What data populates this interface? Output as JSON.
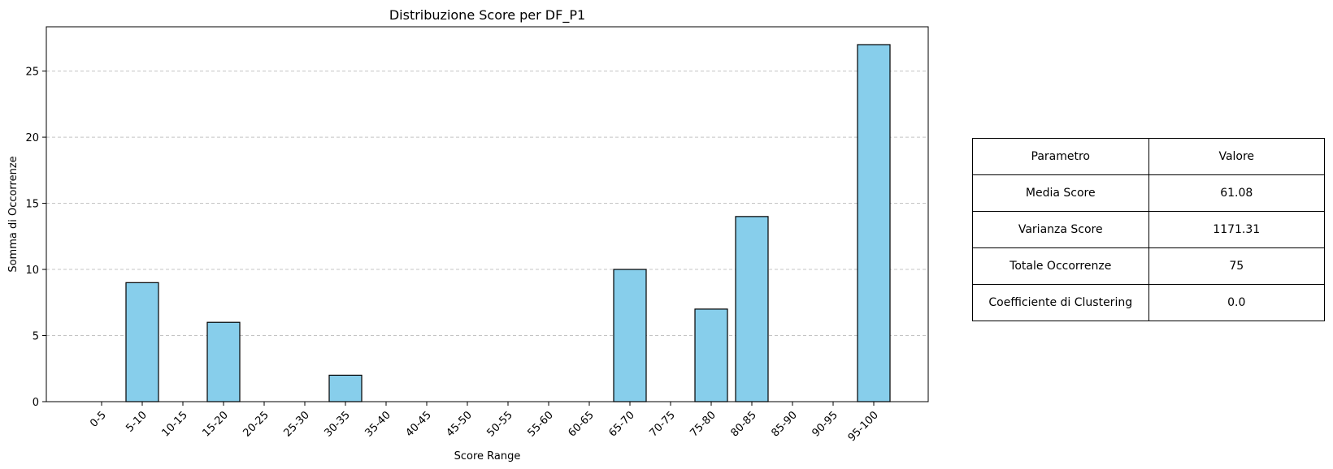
{
  "colors": {
    "bar_fill": "#87ceeb",
    "bar_edge": "#000000",
    "grid": "#c4c4c4",
    "axis": "#000000"
  },
  "chart_data": {
    "type": "bar",
    "title": "Distribuzione Score per DF_P1",
    "xlabel": "Score Range",
    "ylabel": "Somma di Occorrenze",
    "categories": [
      "0-5",
      "5-10",
      "10-15",
      "15-20",
      "20-25",
      "25-30",
      "30-35",
      "35-40",
      "40-45",
      "45-50",
      "50-55",
      "55-60",
      "60-65",
      "65-70",
      "70-75",
      "75-80",
      "80-85",
      "85-90",
      "90-95",
      "95-100"
    ],
    "values": [
      0,
      9,
      0,
      6,
      0,
      0,
      2,
      0,
      0,
      0,
      0,
      0,
      0,
      10,
      0,
      7,
      14,
      0,
      0,
      27
    ],
    "ylim": [
      0,
      28.35
    ],
    "yticks": [
      0,
      5,
      10,
      15,
      20,
      25
    ],
    "grid": "y-dashed"
  },
  "table": {
    "header": [
      "Parametro",
      "Valore"
    ],
    "rows": [
      [
        "Media Score",
        "61.08"
      ],
      [
        "Varianza Score",
        "1171.31"
      ],
      [
        "Totale Occorrenze",
        "75"
      ],
      [
        "Coefficiente di Clustering",
        "0.0"
      ]
    ]
  }
}
